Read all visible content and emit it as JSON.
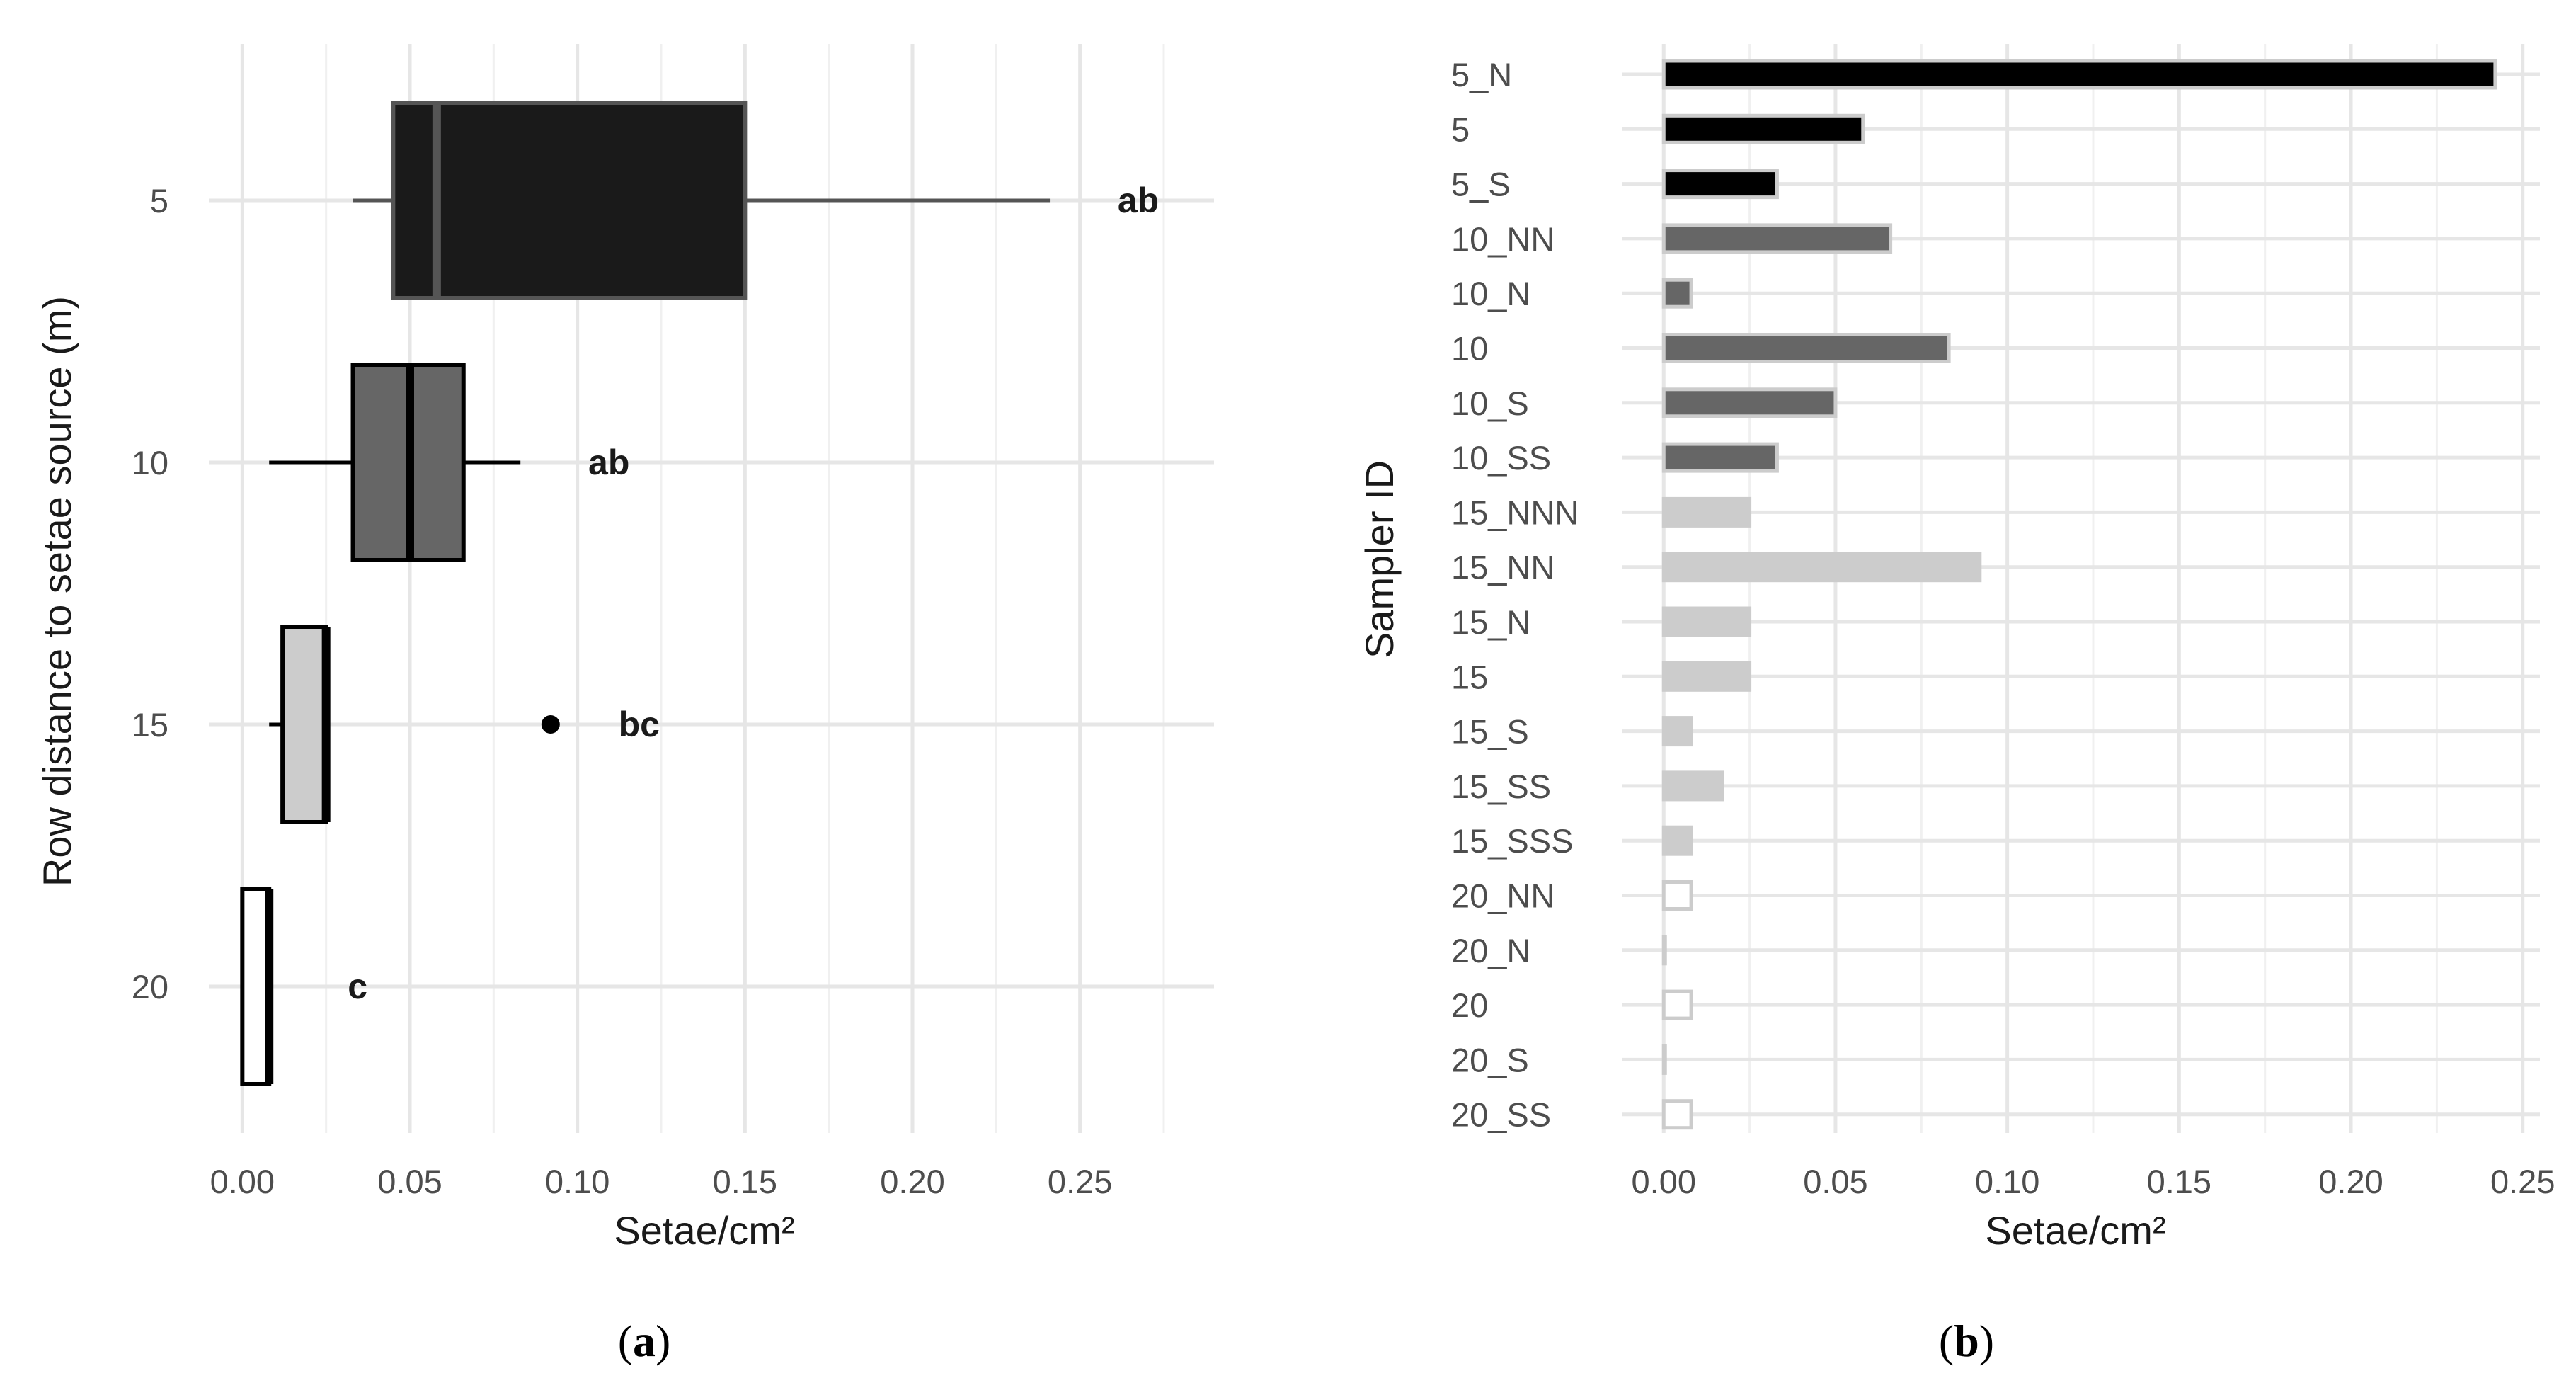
{
  "figure_labels": {
    "a": "a",
    "b": "b",
    "open_paren": "(",
    "close_paren": ")"
  },
  "chart_data": [
    {
      "type": "boxplot",
      "orientation": "horizontal",
      "xlabel": "Setae/cm²",
      "ylabel": "Row distance to setae source (m)",
      "xlim": [
        -0.01,
        0.29
      ],
      "xticks": [
        "0.00",
        "0.05",
        "0.10",
        "0.15",
        "0.20",
        "0.25"
      ],
      "xtick_values": [
        0,
        0.05,
        0.1,
        0.15,
        0.2,
        0.25
      ],
      "categories": [
        "5",
        "10",
        "15",
        "20"
      ],
      "boxes": [
        {
          "group": "5",
          "whisker_low": 0.033,
          "q1": 0.045,
          "median": 0.058,
          "q3": 0.15,
          "whisker_high": 0.241,
          "outliers": [],
          "letter": "ab",
          "fill": "#1a1a1a",
          "stroke": "#555555"
        },
        {
          "group": "10",
          "whisker_low": 0.008,
          "q1": 0.033,
          "median": 0.05,
          "q3": 0.066,
          "whisker_high": 0.083,
          "outliers": [],
          "letter": "ab",
          "fill": "#666666",
          "stroke": "#000000"
        },
        {
          "group": "15",
          "whisker_low": 0.008,
          "q1": 0.012,
          "median": 0.025,
          "q3": 0.025,
          "whisker_high": 0.025,
          "outliers": [
            0.092
          ],
          "letter": "bc",
          "fill": "#cccccc",
          "stroke": "#000000"
        },
        {
          "group": "20",
          "whisker_low": 0.0,
          "q1": 0.0,
          "median": 0.008,
          "q3": 0.008,
          "whisker_high": 0.008,
          "outliers": [],
          "letter": "c",
          "fill": "#ffffff",
          "stroke": "#000000"
        }
      ]
    },
    {
      "type": "bar",
      "orientation": "horizontal",
      "xlabel": "Setae/cm²",
      "ylabel": "Sampler ID",
      "xlim": [
        -0.012,
        0.255
      ],
      "xticks": [
        "0.00",
        "0.05",
        "0.10",
        "0.15",
        "0.20",
        "0.25"
      ],
      "xtick_values": [
        0,
        0.05,
        0.1,
        0.15,
        0.2,
        0.25
      ],
      "categories": [
        "5_N",
        "5",
        "5_S",
        "10_NN",
        "10_N",
        "10",
        "10_S",
        "10_SS",
        "15_NNN",
        "15_NN",
        "15_N",
        "15",
        "15_S",
        "15_SS",
        "15_SSS",
        "20_NN",
        "20_N",
        "20",
        "20_S",
        "20_SS"
      ],
      "values": [
        0.242,
        0.058,
        0.033,
        0.066,
        0.008,
        0.083,
        0.05,
        0.033,
        0.025,
        0.092,
        0.025,
        0.025,
        0.008,
        0.017,
        0.008,
        0.008,
        0.0,
        0.008,
        0.0,
        0.008
      ],
      "groups": [
        "5",
        "5",
        "5",
        "10",
        "10",
        "10",
        "10",
        "10",
        "15",
        "15",
        "15",
        "15",
        "15",
        "15",
        "15",
        "20",
        "20",
        "20",
        "20",
        "20"
      ],
      "group_colors": {
        "5": "#000000",
        "10": "#666666",
        "15": "#cccccc",
        "20": "#ffffff"
      },
      "bar_outline": "#cccccc"
    }
  ]
}
